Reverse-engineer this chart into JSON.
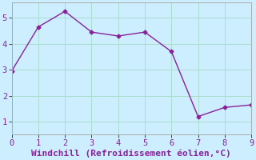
{
  "x": [
    0,
    1,
    2,
    3,
    4,
    5,
    6,
    7,
    8,
    9
  ],
  "y": [
    2.95,
    4.65,
    5.25,
    4.45,
    4.3,
    4.45,
    3.7,
    1.2,
    1.55,
    1.65
  ],
  "line_color": "#882299",
  "marker": "D",
  "marker_size": 2.5,
  "xlabel": "Windchill (Refroidissement éolien,°C)",
  "xlabel_fontsize": 8,
  "xlim": [
    0,
    9
  ],
  "ylim": [
    0.5,
    5.6
  ],
  "xticks": [
    0,
    1,
    2,
    3,
    4,
    5,
    6,
    7,
    8,
    9
  ],
  "yticks": [
    1,
    2,
    3,
    4,
    5
  ],
  "background_color": "#cceeff",
  "grid_color": "#aaddcc",
  "tick_fontsize": 7.5,
  "spine_color": "#aaaaaa",
  "label_color": "#882299"
}
